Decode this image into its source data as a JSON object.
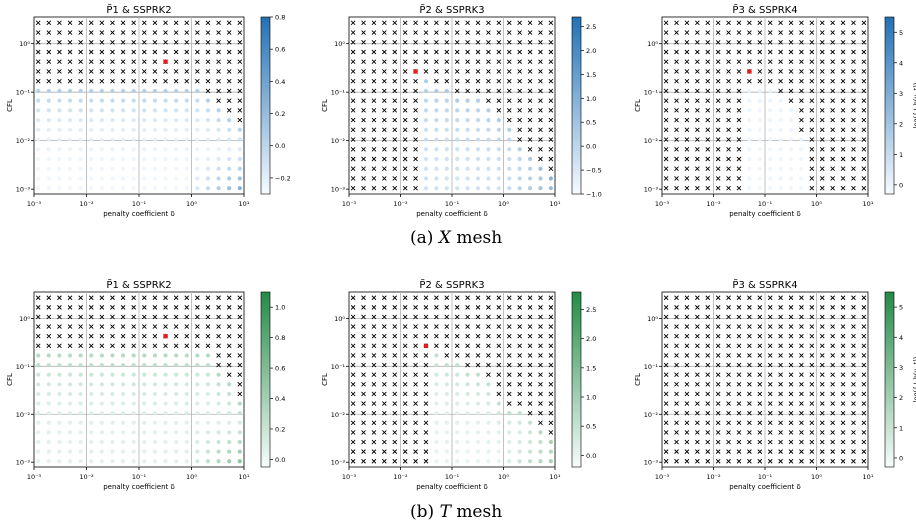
{
  "figure": {
    "captions": [
      {
        "label": "(a)",
        "symbol": "X",
        "text": "mesh"
      },
      {
        "label": "(b)",
        "symbol": "T",
        "text": "mesh"
      }
    ],
    "colormaps": {
      "X": {
        "low": "#f7fbff",
        "high": "#2171b5"
      },
      "T": {
        "low": "#f7fcfd",
        "high": "#238b45"
      }
    },
    "marker_colors": {
      "unstable": "#000000",
      "highlight": "#e41a1c"
    }
  },
  "chart_data": [
    {
      "type": "scatter",
      "row": "X",
      "title": "P̃1 & SSPRK2",
      "xlabel": "penalty coefficient δ",
      "ylabel": "CFL",
      "xscale": "log",
      "yscale": "log",
      "xticks": [
        "10⁻³",
        "10⁻²",
        "10⁻¹",
        "10⁰",
        "10¹"
      ],
      "yticks": [
        "10⁻³",
        "10⁻²",
        "10⁻¹",
        "10⁰"
      ],
      "colorbar": {
        "ticks": [
          "0.8",
          "0.6",
          "0.4",
          "0.2",
          "0.0",
          "−0.2"
        ],
        "range": [
          -0.3,
          0.8
        ],
        "label": ""
      },
      "n_delta": 20,
      "n_cfl": 18,
      "stable_cfl_rows": [
        11,
        11,
        11,
        11,
        11,
        11,
        11,
        11,
        11,
        11,
        11,
        11,
        11,
        11,
        11,
        11,
        10,
        9,
        8,
        7
      ],
      "low_value": -0.25,
      "high_value": 0.75,
      "highlight": [
        12,
        13
      ],
      "grid": true
    },
    {
      "type": "scatter",
      "row": "X",
      "title": "P̃2 & SSPRK3",
      "xlabel": "penalty coefficient δ",
      "ylabel": "CFL",
      "xscale": "log",
      "yscale": "log",
      "xticks": [
        "10⁻³",
        "10⁻²",
        "10⁻¹",
        "10⁰",
        "10¹"
      ],
      "yticks": [
        "10⁻³",
        "10⁻²",
        "10⁻¹",
        "10⁰"
      ],
      "colorbar": {
        "ticks": [
          "2.5",
          "2.0",
          "1.5",
          "1.0",
          "0.5",
          "0.0",
          "−0.5",
          "−1.0"
        ],
        "range": [
          -1.0,
          2.7
        ],
        "label": ""
      },
      "n_delta": 20,
      "n_cfl": 18,
      "stable_cfl_rows": [
        0,
        0,
        0,
        0,
        0,
        0,
        0,
        12,
        11,
        11,
        10,
        10,
        10,
        9,
        8,
        7,
        5,
        4,
        3,
        2
      ],
      "low_value": -0.2,
      "high_value": 1.6,
      "highlight": [
        6,
        12
      ],
      "grid": true
    },
    {
      "type": "scatter",
      "row": "X",
      "title": "P̃3 & SSPRK4",
      "xlabel": "penalty coefficient δ",
      "ylabel": "CFL",
      "xscale": "log",
      "yscale": "log",
      "xticks": [
        "10⁻³",
        "10⁻²",
        "10⁻¹",
        "10⁰",
        "10¹"
      ],
      "yticks": [
        "10⁻³",
        "10⁻²",
        "10⁻¹",
        "10⁰"
      ],
      "colorbar": {
        "ticks": [
          "5",
          "4",
          "3",
          "2",
          "1",
          "0"
        ],
        "range": [
          -0.3,
          5.5
        ],
        "label": "log(∫ I_h(u, t))"
      },
      "n_delta": 20,
      "n_cfl": 18,
      "stable_cfl_rows": [
        0,
        0,
        0,
        0,
        0,
        0,
        0,
        0,
        11,
        11,
        11,
        10,
        9,
        6,
        0,
        0,
        0,
        0,
        0,
        0
      ],
      "low_value": 0.0,
      "high_value": 0.2,
      "highlight": [
        8,
        12
      ],
      "grid": true
    },
    {
      "type": "scatter",
      "row": "T",
      "title": "P̃1 & SSPRK2",
      "xlabel": "penalty coefficient δ",
      "ylabel": "CFL",
      "xscale": "log",
      "yscale": "log",
      "xticks": [
        "10⁻³",
        "10⁻²",
        "10⁻¹",
        "10⁰",
        "10¹"
      ],
      "yticks": [
        "10⁻³",
        "10⁻²",
        "10⁻¹",
        "10⁰"
      ],
      "colorbar": {
        "ticks": [
          "1.0",
          "0.8",
          "0.6",
          "0.4",
          "0.2",
          "0.0"
        ],
        "range": [
          -0.05,
          1.1
        ],
        "label": ""
      },
      "n_delta": 20,
      "n_cfl": 18,
      "stable_cfl_rows": [
        12,
        12,
        12,
        12,
        12,
        12,
        12,
        12,
        12,
        12,
        12,
        12,
        12,
        12,
        12,
        12,
        12,
        10,
        9,
        7
      ],
      "low_value": 0.08,
      "high_value": 0.9,
      "highlight": [
        12,
        13
      ],
      "grid": true
    },
    {
      "type": "scatter",
      "row": "T",
      "title": "P̃2 & SSPRK3",
      "xlabel": "penalty coefficient δ",
      "ylabel": "CFL",
      "xscale": "log",
      "yscale": "log",
      "xticks": [
        "10⁻³",
        "10⁻²",
        "10⁻¹",
        "10⁰",
        "10¹"
      ],
      "yticks": [
        "10⁻³",
        "10⁻²",
        "10⁻¹",
        "10⁰"
      ],
      "colorbar": {
        "ticks": [
          "2.5",
          "2.0",
          "1.5",
          "1.0",
          "0.5",
          "0.0"
        ],
        "range": [
          -0.2,
          2.8
        ],
        "label": ""
      },
      "n_delta": 20,
      "n_cfl": 18,
      "stable_cfl_rows": [
        0,
        0,
        0,
        0,
        0,
        0,
        0,
        0,
        12,
        11,
        11,
        10,
        10,
        9,
        7,
        6,
        6,
        5,
        4,
        3
      ],
      "low_value": 0.1,
      "high_value": 1.7,
      "highlight": [
        7,
        12
      ],
      "grid": true
    },
    {
      "type": "scatter",
      "row": "T",
      "title": "P̃3 & SSPRK4",
      "xlabel": "penalty coefficient δ",
      "ylabel": "CFL",
      "xscale": "log",
      "yscale": "log",
      "xticks": [
        "10⁻³",
        "10⁻²",
        "10⁻¹",
        "10⁰",
        "10¹"
      ],
      "yticks": [
        "10⁻³",
        "10⁻²",
        "10⁻¹",
        "10⁰"
      ],
      "colorbar": {
        "ticks": [
          "5",
          "4",
          "3",
          "2",
          "1",
          "0"
        ],
        "range": [
          -0.3,
          5.5
        ],
        "label": "log(∫ I_h(u, t))"
      },
      "n_delta": 20,
      "n_cfl": 18,
      "stable_cfl_rows": [
        0,
        0,
        0,
        0,
        0,
        0,
        0,
        0,
        0,
        0,
        0,
        0,
        0,
        0,
        0,
        0,
        0,
        0,
        0,
        0
      ],
      "low_value": 0.0,
      "high_value": 0.2,
      "highlight": null,
      "grid": true
    }
  ]
}
